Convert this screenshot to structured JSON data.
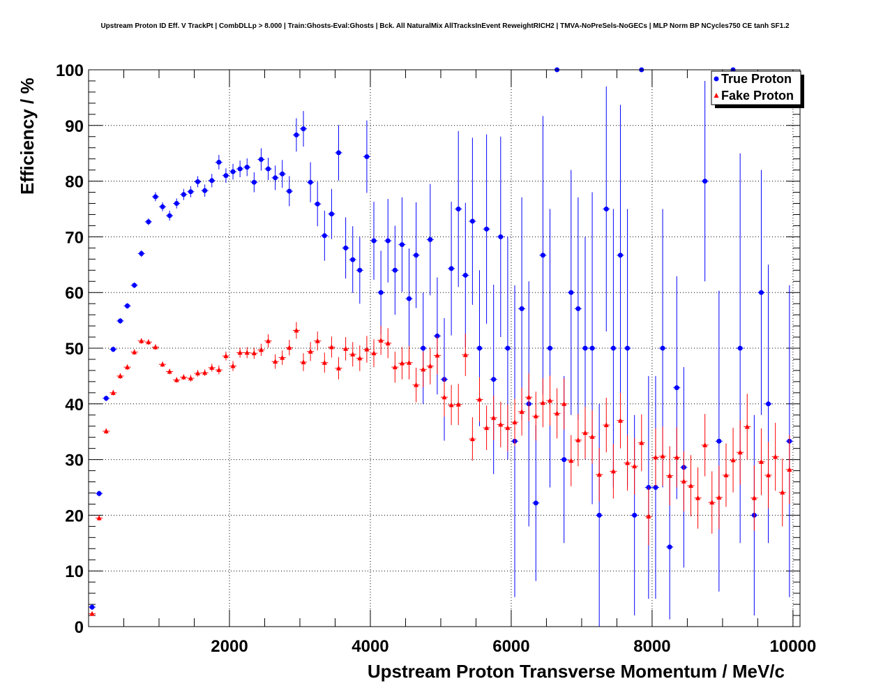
{
  "chart_data": {
    "type": "scatter",
    "title": "Upstream Proton ID Eff. V TrackPt | CombDLLp > 8.000 | Train:Ghosts-Eval:Ghosts | Bck. All NaturalMix AllTracksInEvent ReweightRICH2 | TMVA-NoPreSels-NoGECs | MLP Norm BP NCycles750 CE tanh SF1.2",
    "xlabel": "Upstream Proton Transverse Momentum / MeV/c",
    "ylabel": "Efficiency / %",
    "xlim": [
      0,
      10100
    ],
    "ylim": [
      0,
      100
    ],
    "x_ticks": [
      2000,
      4000,
      6000,
      8000,
      10000
    ],
    "y_ticks": [
      0,
      10,
      20,
      30,
      40,
      50,
      60,
      70,
      80,
      90,
      100
    ],
    "grid": true,
    "legend_position": "top-right",
    "series": [
      {
        "name": "True Proton",
        "color": "#0000ff",
        "marker": "circle",
        "points": [
          [
            50,
            3.5,
            0.5
          ],
          [
            150,
            23.9,
            0.5
          ],
          [
            250,
            41,
            0.5
          ],
          [
            350,
            49.8,
            0.5
          ],
          [
            450,
            54.9,
            0.5
          ],
          [
            550,
            57.6,
            0.5
          ],
          [
            650,
            61.3,
            0.5
          ],
          [
            750,
            67,
            0.6
          ],
          [
            850,
            72.7,
            0.6
          ],
          [
            950,
            77.2,
            0.8
          ],
          [
            1050,
            75.4,
            0.8
          ],
          [
            1150,
            73.8,
            0.9
          ],
          [
            1250,
            76,
            0.9
          ],
          [
            1350,
            77.6,
            1
          ],
          [
            1450,
            78.1,
            1
          ],
          [
            1550,
            79.9,
            1
          ],
          [
            1650,
            78.3,
            1.1
          ],
          [
            1750,
            80.1,
            1.2
          ],
          [
            1850,
            83.4,
            1.3
          ],
          [
            1950,
            81,
            1.3
          ],
          [
            2050,
            81.7,
            1.4
          ],
          [
            2150,
            82.2,
            1.5
          ],
          [
            2250,
            82.5,
            1.6
          ],
          [
            2350,
            79.8,
            1.8
          ],
          [
            2450,
            83.9,
            2
          ],
          [
            2550,
            82.2,
            2
          ],
          [
            2650,
            80.6,
            2.2
          ],
          [
            2750,
            81.3,
            2.5
          ],
          [
            2850,
            78.2,
            2.7
          ],
          [
            2950,
            88.3,
            3
          ],
          [
            3050,
            89.4,
            3.2
          ],
          [
            3150,
            79.8,
            3.6
          ],
          [
            3250,
            75.9,
            4
          ],
          [
            3350,
            70.2,
            4.5
          ],
          [
            3450,
            74.1,
            4.5
          ],
          [
            3550,
            85.1,
            5
          ],
          [
            3650,
            68,
            5.5
          ],
          [
            3750,
            65.9,
            6
          ],
          [
            3850,
            64,
            6
          ],
          [
            3950,
            84.4,
            6.5
          ],
          [
            4050,
            69.3,
            7
          ],
          [
            4150,
            60,
            7.5
          ],
          [
            4250,
            69.3,
            7.5
          ],
          [
            4350,
            64,
            8
          ],
          [
            4450,
            68.6,
            8.5
          ],
          [
            4550,
            58.9,
            9
          ],
          [
            4650,
            66.7,
            9.5
          ],
          [
            4750,
            50,
            10
          ],
          [
            4850,
            69.5,
            10
          ],
          [
            4950,
            52.2,
            10.5
          ],
          [
            5050,
            44.4,
            11
          ],
          [
            5150,
            64.3,
            12
          ],
          [
            5250,
            75,
            14
          ],
          [
            5350,
            63.1,
            13
          ],
          [
            5450,
            72.8,
            15
          ],
          [
            5550,
            50,
            14
          ],
          [
            5650,
            71.4,
            17
          ],
          [
            5750,
            44.4,
            17
          ],
          [
            5850,
            70,
            18
          ],
          [
            5950,
            50,
            20
          ],
          [
            6050,
            33.3,
            28
          ],
          [
            6150,
            57.1,
            20
          ],
          [
            6250,
            40,
            22
          ],
          [
            6350,
            22.2,
            14
          ],
          [
            6450,
            66.7,
            25
          ],
          [
            6550,
            50,
            25
          ],
          [
            6650,
            100,
            0
          ],
          [
            6750,
            30,
            15
          ],
          [
            6850,
            60,
            22
          ],
          [
            6950,
            57.1,
            20
          ],
          [
            7050,
            50,
            20
          ],
          [
            7150,
            50,
            28
          ],
          [
            7250,
            20,
            20
          ],
          [
            7350,
            75,
            22
          ],
          [
            7450,
            50,
            25
          ],
          [
            7550,
            66.7,
            27
          ],
          [
            7650,
            50,
            25
          ],
          [
            7750,
            20,
            18
          ],
          [
            7850,
            100,
            0
          ],
          [
            7950,
            25,
            20
          ],
          [
            8050,
            25,
            20
          ],
          [
            8150,
            50,
            25
          ],
          [
            8250,
            14.3,
            13
          ],
          [
            8350,
            42.9,
            20
          ],
          [
            8450,
            28.6,
            18
          ],
          [
            8750,
            80,
            18
          ],
          [
            8950,
            33.3,
            27
          ],
          [
            9150,
            100,
            0
          ],
          [
            9250,
            50,
            35
          ],
          [
            9450,
            20,
            18
          ],
          [
            9550,
            60,
            22
          ],
          [
            9650,
            40,
            25
          ],
          [
            9950,
            33.3,
            28
          ]
        ]
      },
      {
        "name": "Fake Proton",
        "color": "#ff0000",
        "marker": "triangle",
        "points": [
          [
            50,
            2.3,
            0.3
          ],
          [
            150,
            19.5,
            0.5
          ],
          [
            250,
            35.1,
            0.5
          ],
          [
            350,
            42,
            0.5
          ],
          [
            450,
            45,
            0.5
          ],
          [
            550,
            46.6,
            0.5
          ],
          [
            650,
            49.3,
            0.5
          ],
          [
            750,
            51.3,
            0.5
          ],
          [
            850,
            51.1,
            0.5
          ],
          [
            950,
            50.2,
            0.5
          ],
          [
            1050,
            47.1,
            0.5
          ],
          [
            1150,
            45.8,
            0.5
          ],
          [
            1250,
            44.3,
            0.5
          ],
          [
            1350,
            44.8,
            0.5
          ],
          [
            1450,
            44.6,
            0.6
          ],
          [
            1550,
            45.5,
            0.6
          ],
          [
            1650,
            45.6,
            0.6
          ],
          [
            1750,
            46.5,
            0.7
          ],
          [
            1850,
            46.1,
            0.8
          ],
          [
            1950,
            48.6,
            0.8
          ],
          [
            2050,
            46.8,
            0.9
          ],
          [
            2150,
            49.2,
            0.9
          ],
          [
            2250,
            49.2,
            1
          ],
          [
            2350,
            49.1,
            1
          ],
          [
            2450,
            49.7,
            1.1
          ],
          [
            2550,
            51.3,
            1.2
          ],
          [
            2650,
            47.6,
            1.3
          ],
          [
            2750,
            48.3,
            1.3
          ],
          [
            2850,
            50.1,
            1.4
          ],
          [
            2950,
            53.2,
            1.5
          ],
          [
            3050,
            47.5,
            1.6
          ],
          [
            3150,
            49.4,
            1.7
          ],
          [
            3250,
            51.3,
            1.7
          ],
          [
            3350,
            47.4,
            1.8
          ],
          [
            3450,
            50.2,
            1.9
          ],
          [
            3550,
            46.4,
            2
          ],
          [
            3650,
            49.9,
            2.1
          ],
          [
            3750,
            48.9,
            2.2
          ],
          [
            3850,
            48.2,
            2.3
          ],
          [
            3950,
            49.8,
            2.4
          ],
          [
            4050,
            49.1,
            2.5
          ],
          [
            4150,
            51.4,
            2.6
          ],
          [
            4250,
            50.9,
            2.7
          ],
          [
            4350,
            46.6,
            2.8
          ],
          [
            4450,
            47.3,
            2.9
          ],
          [
            4550,
            47.4,
            3
          ],
          [
            4650,
            43.4,
            3.1
          ],
          [
            4750,
            46.2,
            3.2
          ],
          [
            4850,
            46.8,
            3.3
          ],
          [
            4950,
            48.7,
            3.4
          ],
          [
            5050,
            41.2,
            3.5
          ],
          [
            5150,
            39.8,
            3.6
          ],
          [
            5250,
            39.9,
            3.7
          ],
          [
            5350,
            48.8,
            3.8
          ],
          [
            5450,
            33.7,
            3.9
          ],
          [
            5550,
            40.8,
            4
          ],
          [
            5650,
            35.7,
            4
          ],
          [
            5750,
            37.5,
            4
          ],
          [
            5850,
            36.3,
            4.1
          ],
          [
            5950,
            35.7,
            4.2
          ],
          [
            6050,
            36.7,
            4.2
          ],
          [
            6150,
            38.6,
            4.3
          ],
          [
            6250,
            41.2,
            4.3
          ],
          [
            6350,
            37.8,
            4.4
          ],
          [
            6450,
            40.2,
            4.4
          ],
          [
            6550,
            40.6,
            4.5
          ],
          [
            6650,
            38.3,
            4.5
          ],
          [
            6750,
            40,
            4.6
          ],
          [
            6850,
            29.8,
            4.6
          ],
          [
            6950,
            33.5,
            4.7
          ],
          [
            7050,
            34.8,
            4.7
          ],
          [
            7150,
            34.1,
            4.8
          ],
          [
            7250,
            27.3,
            4.8
          ],
          [
            7350,
            36.2,
            4.9
          ],
          [
            7450,
            27.9,
            4.9
          ],
          [
            7550,
            37,
            5
          ],
          [
            7650,
            29.4,
            5
          ],
          [
            7750,
            28.8,
            5.1
          ],
          [
            7850,
            33,
            5.1
          ],
          [
            7950,
            19.8,
            5.2
          ],
          [
            8050,
            30.4,
            5.2
          ],
          [
            8150,
            30.6,
            5.3
          ],
          [
            8250,
            27.1,
            5.3
          ],
          [
            8350,
            30.4,
            5.4
          ],
          [
            8450,
            26.1,
            5.4
          ],
          [
            8550,
            25.3,
            5.5
          ],
          [
            8650,
            23.1,
            5.5
          ],
          [
            8750,
            32.6,
            5.6
          ],
          [
            8850,
            22.3,
            5.6
          ],
          [
            8950,
            23.2,
            5.7
          ],
          [
            9050,
            27.2,
            5.7
          ],
          [
            9150,
            29.9,
            5.8
          ],
          [
            9250,
            31.3,
            5.8
          ],
          [
            9350,
            35.9,
            5.9
          ],
          [
            9450,
            23.1,
            5.9
          ],
          [
            9550,
            29.6,
            6
          ],
          [
            9650,
            27.2,
            6
          ],
          [
            9750,
            30.5,
            6.1
          ],
          [
            9850,
            24.1,
            6.1
          ],
          [
            9950,
            28.2,
            6.2
          ]
        ]
      }
    ]
  }
}
